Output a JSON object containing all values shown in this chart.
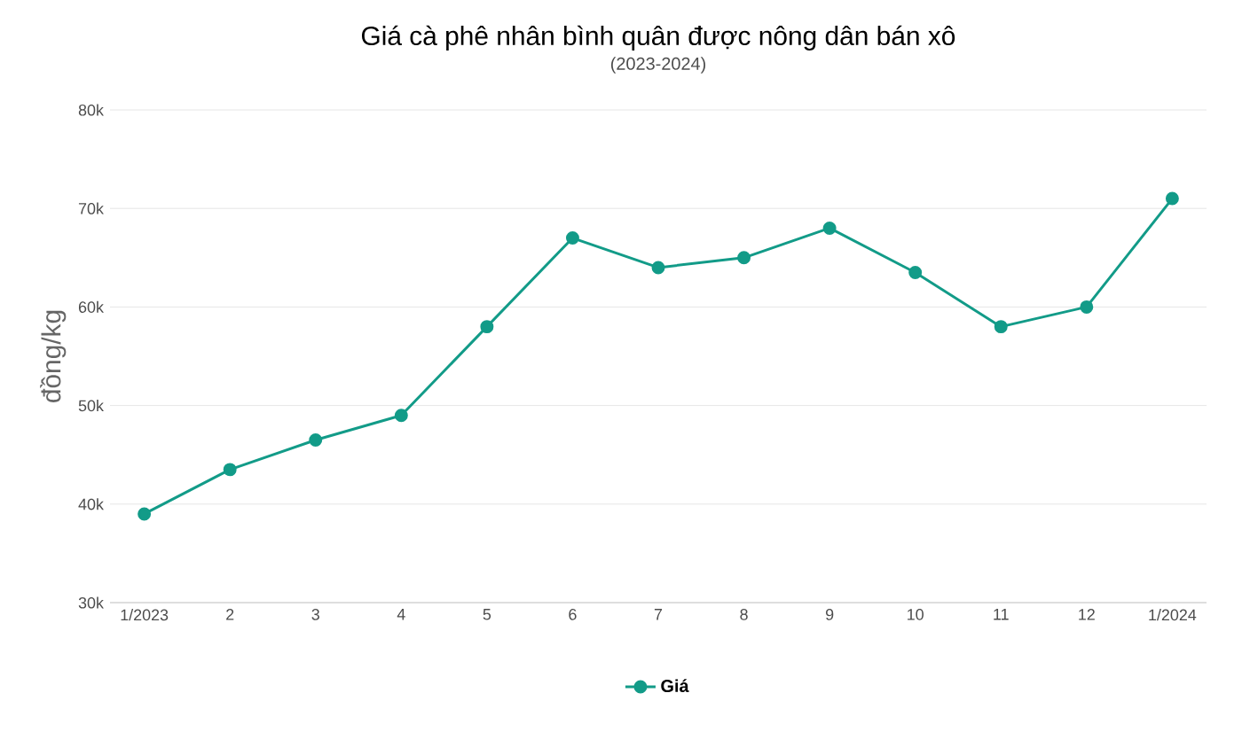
{
  "chart_data": {
    "type": "line",
    "title": "Giá cà phê nhân bình quân được nông dân bán xô",
    "subtitle": "(2023-2024)",
    "ylabel": "đồng/kg",
    "categories": [
      "1/2023",
      "2",
      "3",
      "4",
      "5",
      "6",
      "7",
      "8",
      "9",
      "10",
      "11",
      "12",
      "1/2024"
    ],
    "series": [
      {
        "name": "Giá",
        "color": "#129b88",
        "values": [
          39000,
          43500,
          46500,
          49000,
          58000,
          67000,
          64000,
          65000,
          68000,
          63500,
          58000,
          60000,
          71000
        ]
      }
    ],
    "ylim": [
      30000,
      80000
    ],
    "yticks": [
      {
        "value": 30000,
        "label": "30k"
      },
      {
        "value": 40000,
        "label": "40k"
      },
      {
        "value": 50000,
        "label": "50k"
      },
      {
        "value": 60000,
        "label": "60k"
      },
      {
        "value": 70000,
        "label": "70k"
      },
      {
        "value": 80000,
        "label": "80k"
      }
    ],
    "grid": "y",
    "legend": "bottom",
    "marker": "circle",
    "line_style": "solid"
  }
}
